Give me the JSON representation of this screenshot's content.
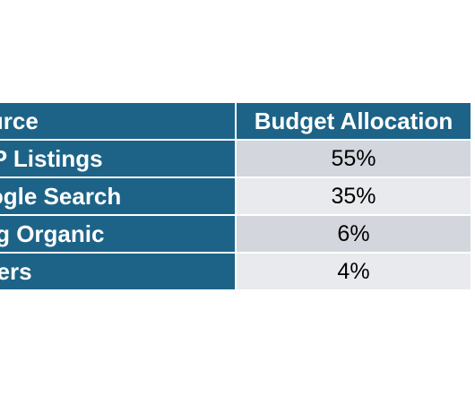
{
  "chart_data": {
    "type": "table",
    "columns": [
      "ource",
      "Budget Allocation"
    ],
    "rows": [
      {
        "source": "BP Listings",
        "allocation": "55%"
      },
      {
        "source": "oogle Search",
        "allocation": "35%"
      },
      {
        "source": "ing Organic",
        "allocation": "6%"
      },
      {
        "source": "thers",
        "allocation": "4%"
      }
    ],
    "values": [
      55,
      35,
      6,
      4
    ],
    "unit": "%"
  },
  "colors": {
    "header_bg": "#1d6387",
    "label_bg": "#1d6387",
    "value_bg_odd": "#d3d6dc",
    "value_bg_even": "#e9eaed"
  }
}
